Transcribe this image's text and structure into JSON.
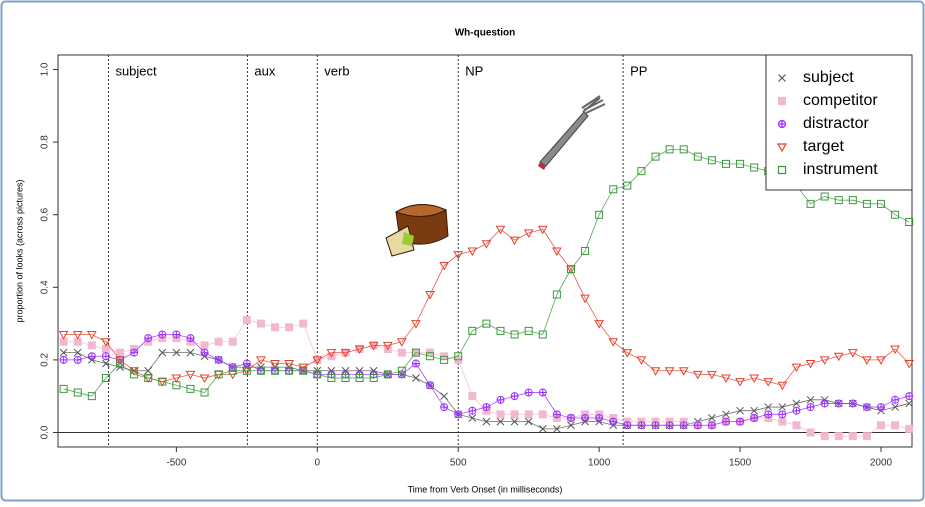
{
  "chart_data": {
    "type": "line",
    "title": "Wh-question",
    "x_label": "Time from Verb Onset (in milliseconds)",
    "y_label": "proportion of looks (across pictures)",
    "x": [
      -900,
      -850,
      -800,
      -750,
      -700,
      -650,
      -600,
      -550,
      -500,
      -450,
      -400,
      -350,
      -300,
      -250,
      -200,
      -150,
      -100,
      -50,
      0,
      50,
      100,
      150,
      200,
      250,
      300,
      350,
      400,
      450,
      500,
      550,
      600,
      650,
      700,
      750,
      800,
      850,
      900,
      950,
      1000,
      1050,
      1100,
      1150,
      1200,
      1250,
      1300,
      1350,
      1400,
      1450,
      1500,
      1550,
      1600,
      1650,
      1700,
      1750,
      1800,
      1850,
      1900,
      1950,
      2000,
      2050,
      2100
    ],
    "series": [
      {
        "name": "subject",
        "color": "#555555",
        "marker": "x",
        "values": [
          0.22,
          0.22,
          0.2,
          0.19,
          0.18,
          0.17,
          0.17,
          0.22,
          0.22,
          0.22,
          0.21,
          0.2,
          0.18,
          0.18,
          0.18,
          0.18,
          0.18,
          0.17,
          0.17,
          0.17,
          0.17,
          0.17,
          0.17,
          0.16,
          0.16,
          0.15,
          0.13,
          0.1,
          0.05,
          0.04,
          0.03,
          0.03,
          0.03,
          0.03,
          0.01,
          0.01,
          0.02,
          0.03,
          0.03,
          0.02,
          0.02,
          0.02,
          0.02,
          0.02,
          0.02,
          0.03,
          0.04,
          0.05,
          0.06,
          0.06,
          0.07,
          0.07,
          0.08,
          0.09,
          0.09,
          0.08,
          0.08,
          0.07,
          0.06,
          0.07,
          0.08
        ]
      },
      {
        "name": "competitor",
        "color": "#f2b8cf",
        "marker": "filled-square",
        "values": [
          0.25,
          0.25,
          0.24,
          0.23,
          0.22,
          0.23,
          0.25,
          0.26,
          0.26,
          0.25,
          0.24,
          0.25,
          0.25,
          0.31,
          0.3,
          0.29,
          0.29,
          0.3,
          0.2,
          0.21,
          0.22,
          0.23,
          0.24,
          0.23,
          0.22,
          0.22,
          0.22,
          0.21,
          0.2,
          0.1,
          0.06,
          0.05,
          0.05,
          0.05,
          0.05,
          0.04,
          0.04,
          0.05,
          0.05,
          0.04,
          0.03,
          0.03,
          0.03,
          0.03,
          0.03,
          0.02,
          0.02,
          0.03,
          0.03,
          0.04,
          0.04,
          0.03,
          0.02,
          0.0,
          -0.01,
          -0.01,
          -0.01,
          -0.01,
          0.02,
          0.02,
          0.01
        ]
      },
      {
        "name": "distractor",
        "color": "#9b30ff",
        "marker": "circle-plus",
        "values": [
          0.2,
          0.2,
          0.21,
          0.21,
          0.2,
          0.22,
          0.26,
          0.27,
          0.27,
          0.26,
          0.22,
          0.2,
          0.18,
          0.19,
          0.17,
          0.17,
          0.17,
          0.17,
          0.16,
          0.16,
          0.16,
          0.16,
          0.16,
          0.16,
          0.16,
          0.19,
          0.13,
          0.07,
          0.05,
          0.06,
          0.07,
          0.09,
          0.1,
          0.11,
          0.11,
          0.05,
          0.04,
          0.04,
          0.04,
          0.03,
          0.02,
          0.02,
          0.02,
          0.02,
          0.02,
          0.02,
          0.02,
          0.03,
          0.03,
          0.04,
          0.05,
          0.05,
          0.06,
          0.07,
          0.08,
          0.08,
          0.08,
          0.07,
          0.07,
          0.09,
          0.1
        ]
      },
      {
        "name": "target",
        "color": "#e8402a",
        "marker": "triangle-down",
        "values": [
          0.27,
          0.27,
          0.27,
          0.25,
          0.2,
          0.17,
          0.15,
          0.14,
          0.15,
          0.16,
          0.15,
          0.16,
          0.16,
          0.17,
          0.2,
          0.19,
          0.19,
          0.18,
          0.2,
          0.22,
          0.22,
          0.23,
          0.24,
          0.24,
          0.25,
          0.3,
          0.38,
          0.46,
          0.49,
          0.5,
          0.52,
          0.56,
          0.53,
          0.55,
          0.56,
          0.5,
          0.45,
          0.37,
          0.3,
          0.25,
          0.22,
          0.2,
          0.17,
          0.17,
          0.17,
          0.16,
          0.16,
          0.15,
          0.14,
          0.15,
          0.14,
          0.13,
          0.18,
          0.19,
          0.2,
          0.21,
          0.22,
          0.2,
          0.2,
          0.23,
          0.19
        ]
      },
      {
        "name": "instrument",
        "color": "#3a9a3a",
        "marker": "square",
        "values": [
          0.12,
          0.11,
          0.1,
          0.15,
          0.19,
          0.16,
          0.15,
          0.14,
          0.13,
          0.12,
          0.11,
          0.16,
          0.17,
          0.17,
          0.17,
          0.17,
          0.17,
          0.17,
          0.16,
          0.15,
          0.15,
          0.15,
          0.15,
          0.16,
          0.17,
          0.22,
          0.21,
          0.2,
          0.21,
          0.28,
          0.3,
          0.28,
          0.27,
          0.28,
          0.27,
          0.38,
          0.45,
          0.5,
          0.6,
          0.67,
          0.68,
          0.72,
          0.76,
          0.78,
          0.78,
          0.76,
          0.75,
          0.74,
          0.74,
          0.73,
          0.72,
          0.7,
          0.68,
          0.63,
          0.65,
          0.64,
          0.64,
          0.63,
          0.63,
          0.6,
          0.58
        ]
      }
    ],
    "regions": [
      {
        "start": -741,
        "label": "subject"
      },
      {
        "start": -248,
        "label": "aux"
      },
      {
        "start": 0,
        "label": "verb"
      },
      {
        "start": 500,
        "label": "NP"
      },
      {
        "start": 1085,
        "label": "PP"
      }
    ],
    "hline": 0,
    "xlim": [
      -920,
      2110
    ],
    "ylim": [
      -0.04,
      1.04
    ],
    "xticks": [
      -500,
      0,
      500,
      1000,
      1500,
      2000
    ],
    "yticks": [
      {
        "value": 0,
        "label": "0.0"
      },
      0.2,
      0.4,
      0.6,
      0.8,
      {
        "value": 1,
        "label": "1.0"
      }
    ],
    "legend": "top-right"
  }
}
